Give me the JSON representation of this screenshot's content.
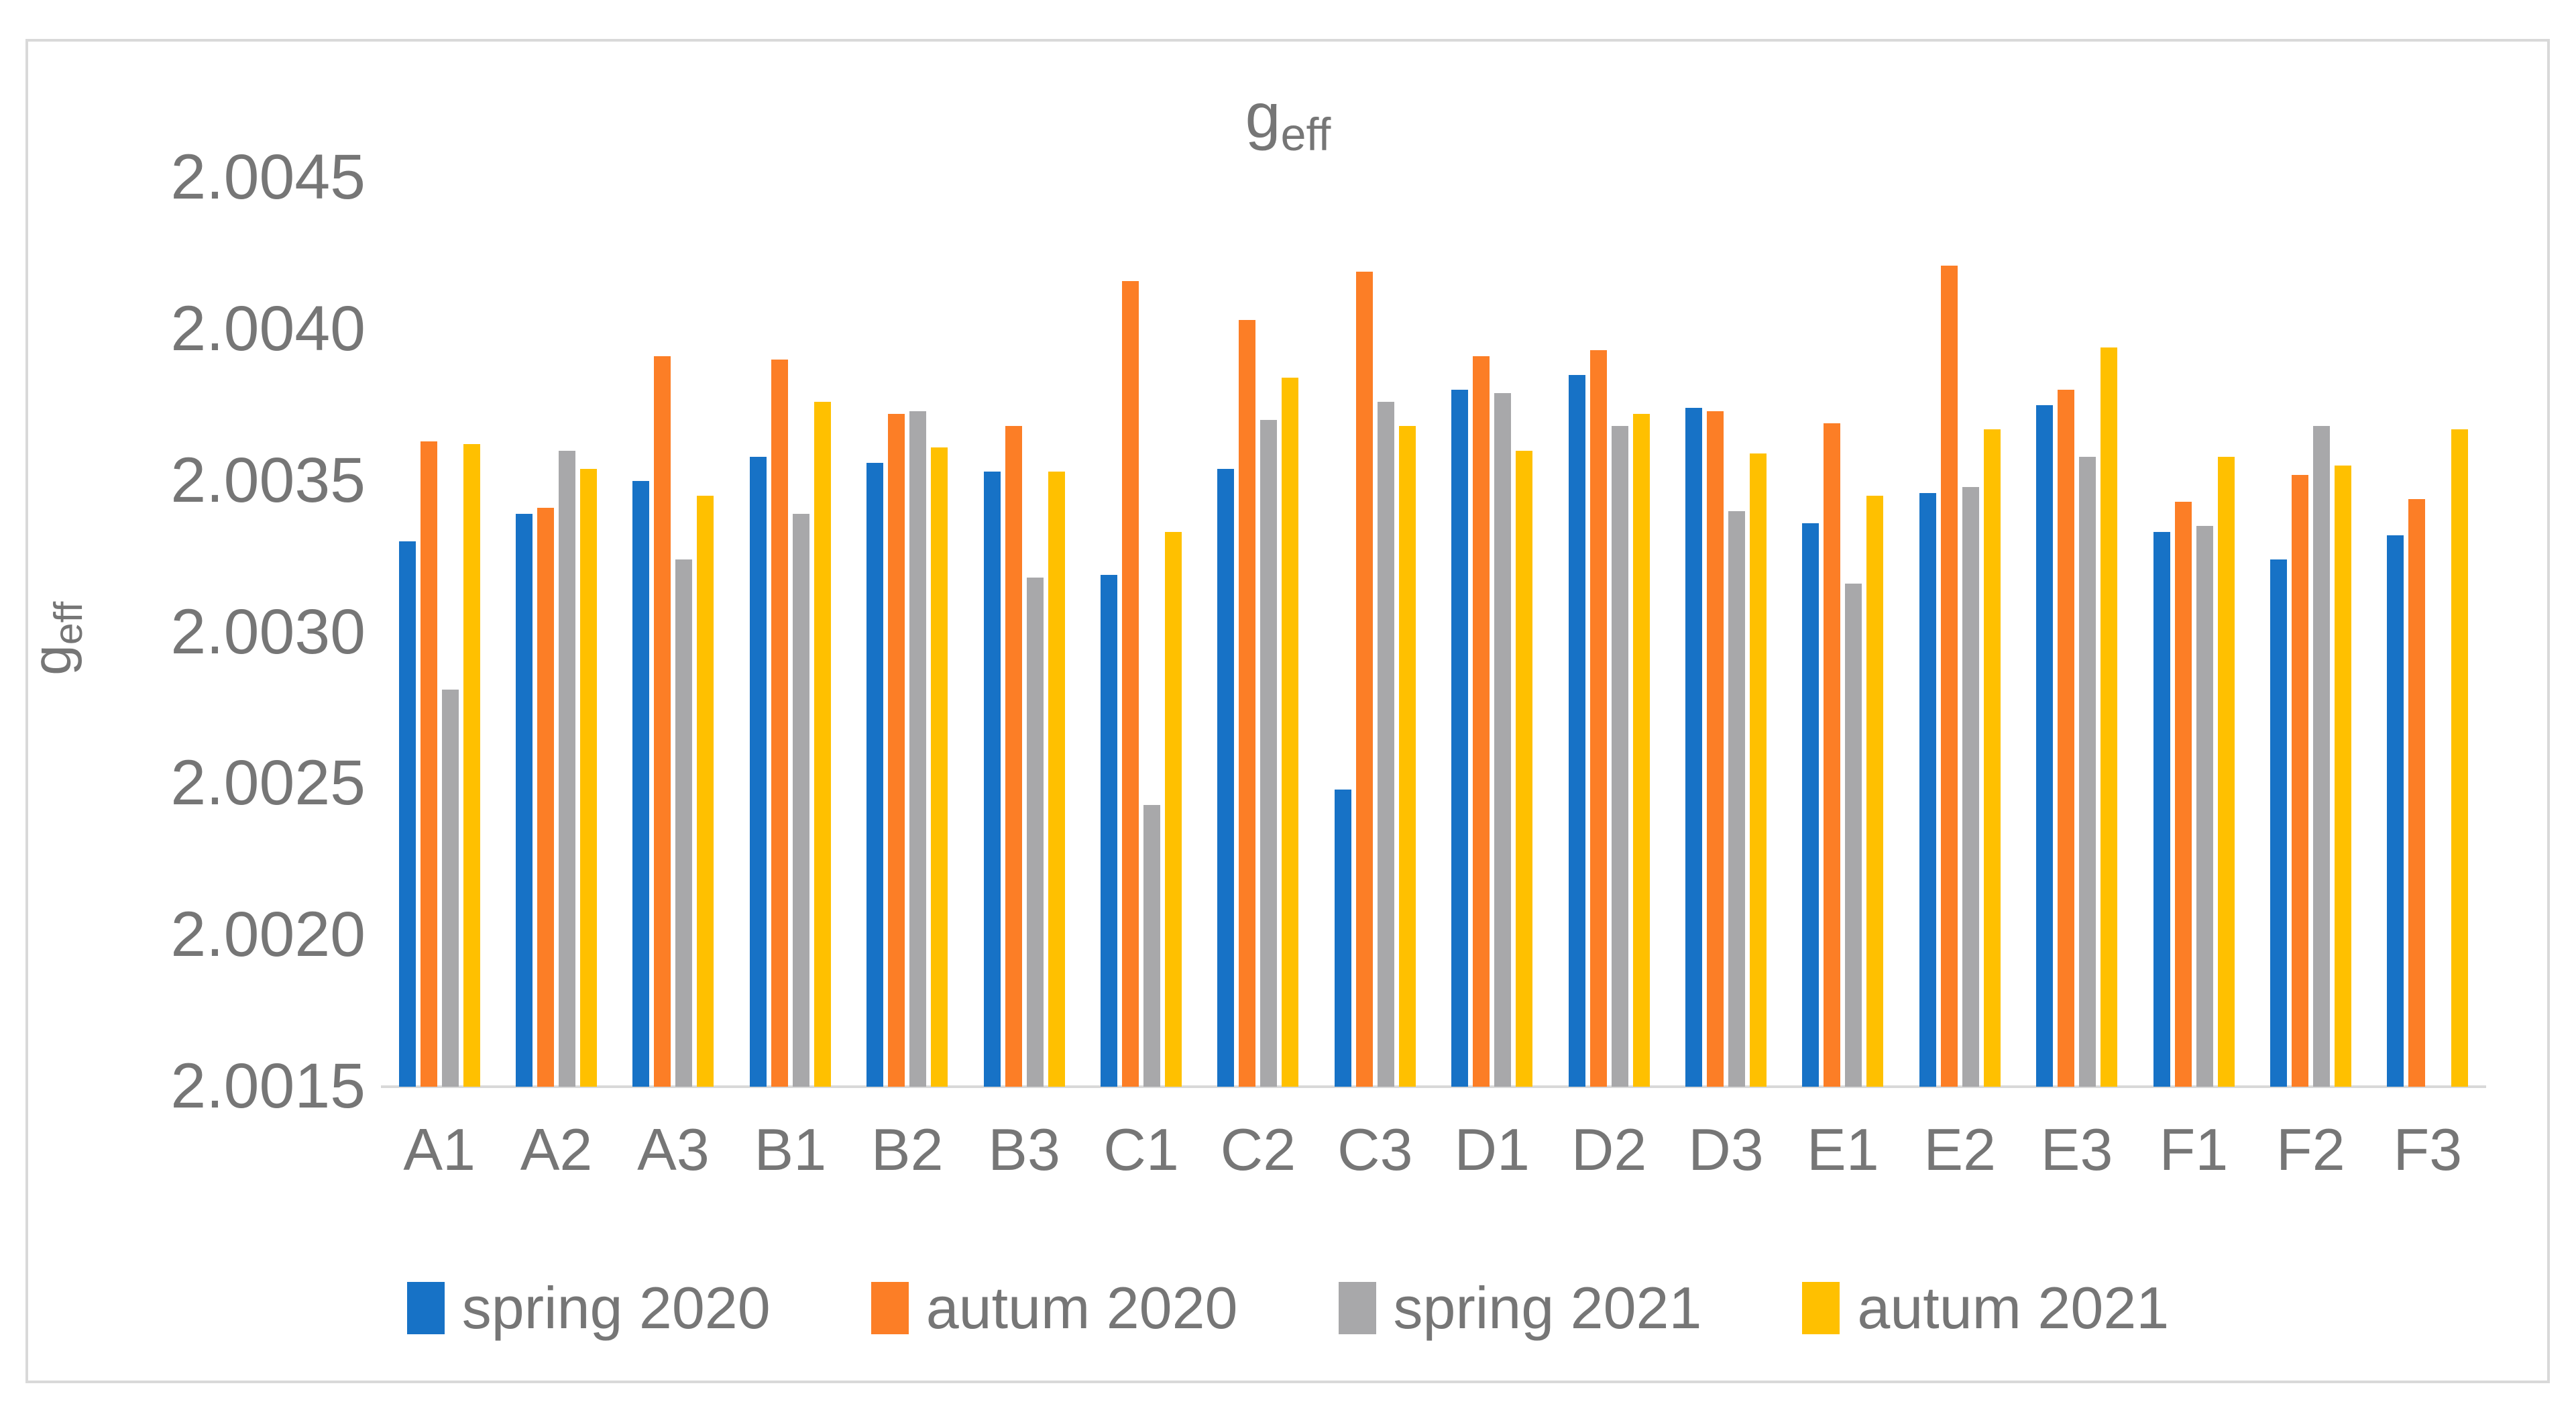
{
  "title": {
    "base": "g",
    "sub": "eff"
  },
  "y_axis_title": {
    "base": "g",
    "sub": "eff"
  },
  "colors": {
    "background": "#FFFFFF",
    "border": "#D9D9D9",
    "axis_line": "#D9D9D9",
    "axis_text": "#767676"
  },
  "chart_data": {
    "type": "bar",
    "title": "g_eff",
    "xlabel": "",
    "ylabel": "g_eff",
    "ylim": [
      2.0015,
      2.0045
    ],
    "grid": false,
    "legend_position": "bottom",
    "y_ticks": [
      "2.0045",
      "2.0040",
      "2.0035",
      "2.0030",
      "2.0025",
      "2.0020",
      "2.0015"
    ],
    "categories": [
      "A1",
      "A2",
      "A3",
      "B1",
      "B2",
      "B3",
      "C1",
      "C2",
      "C3",
      "D1",
      "D2",
      "D3",
      "E1",
      "E2",
      "E3",
      "F1",
      "F2",
      "F3"
    ],
    "series": [
      {
        "name": "spring 2020",
        "color": "#1772C6",
        "values": [
          2.0033,
          2.00339,
          2.0035,
          2.00358,
          2.00356,
          2.00353,
          2.00319,
          2.00354,
          2.00248,
          2.0038,
          2.00385,
          2.00374,
          2.00336,
          2.00346,
          2.00375,
          2.00333,
          2.00324,
          2.00332
        ]
      },
      {
        "name": "autum 2020",
        "color": "#FC7E26",
        "values": [
          2.00363,
          2.00341,
          2.00391,
          2.0039,
          2.00372,
          2.00368,
          2.00416,
          2.00403,
          2.00419,
          2.00391,
          2.00393,
          2.00373,
          2.00369,
          2.00421,
          2.0038,
          2.00343,
          2.00352,
          2.00344
        ]
      },
      {
        "name": "spring 2021",
        "color": "#A8A8AA",
        "values": [
          2.00281,
          2.0036,
          2.00324,
          2.00339,
          2.00373,
          2.00318,
          2.00243,
          2.0037,
          2.00376,
          2.00379,
          2.00368,
          2.0034,
          2.00316,
          2.00348,
          2.00358,
          2.00335,
          2.00368,
          null
        ]
      },
      {
        "name": "autum 2021",
        "color": "#FFC000",
        "values": [
          2.00362,
          2.00354,
          2.00345,
          2.00376,
          2.00361,
          2.00353,
          2.00333,
          2.00384,
          2.00368,
          2.0036,
          2.00372,
          2.00359,
          2.00345,
          2.00367,
          2.00394,
          2.00358,
          2.00355,
          2.00367
        ]
      }
    ]
  }
}
